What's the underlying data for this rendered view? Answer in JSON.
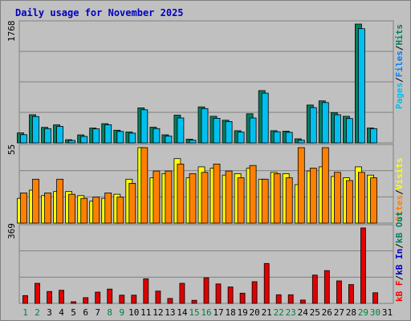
{
  "title": "Daily usage for November 2025",
  "colors": {
    "background": "#ffffff",
    "frame": "#c0c0c0",
    "plot_bg": "#c0c0c0",
    "border_dark": "#808080",
    "title": "#0000c0",
    "grid": "#808080",
    "weekday_label": "#000000",
    "weekend_label": "#008040",
    "pages": "#00c0f0",
    "files": "#0080ff",
    "hits": "#008060",
    "visits": "#ffff00",
    "sites": "#ff8000",
    "kb_out": "#ff8000",
    "kb_in": "#0000c0",
    "kb_f": "#ff0000",
    "bar_red": "#e00000"
  },
  "side_labels": {
    "top": [
      {
        "text": "Pages",
        "color": "#00c0f0"
      },
      {
        "text": "/",
        "color": "#000000"
      },
      {
        "text": "Files",
        "color": "#0080ff"
      },
      {
        "text": "/",
        "color": "#000000"
      },
      {
        "text": "Hits",
        "color": "#008060"
      }
    ],
    "middle": [
      {
        "text": "Sites",
        "color": "#ff8000"
      },
      {
        "text": "/",
        "color": "#000000"
      },
      {
        "text": "Visits",
        "color": "#ffff00"
      }
    ],
    "bottom": [
      {
        "text": "kB F",
        "color": "#ff0000"
      },
      {
        "text": "/",
        "color": "#000000"
      },
      {
        "text": "kB In",
        "color": "#0000c0"
      },
      {
        "text": "/",
        "color": "#000000"
      },
      {
        "text": "kB Out",
        "color": "#008060"
      }
    ]
  },
  "chart_data": [
    {
      "type": "bar",
      "panel": "top",
      "ymax_label": "1768",
      "ylim": [
        0,
        1768
      ],
      "categories": [
        "1",
        "2",
        "3",
        "4",
        "5",
        "6",
        "7",
        "8",
        "9",
        "10",
        "11",
        "12",
        "13",
        "14",
        "15",
        "16",
        "17",
        "18",
        "19",
        "20",
        "21",
        "22",
        "23",
        "24",
        "25",
        "26",
        "27",
        "28",
        "29",
        "30",
        "31"
      ],
      "weekend_days": [
        "1",
        "2",
        "8",
        "9",
        "15",
        "16",
        "22",
        "23",
        "29",
        "30"
      ],
      "series": [
        {
          "name": "Hits",
          "color": "#008060",
          "values": [
            148,
            418,
            230,
            268,
            46,
            118,
            220,
            285,
            187,
            162,
            521,
            233,
            120,
            412,
            55,
            535,
            395,
            337,
            180,
            432,
            778,
            180,
            175,
            60,
            563,
            625,
            450,
            395,
            1768,
            222,
            0
          ]
        },
        {
          "name": "Pages",
          "color": "#00c0f0",
          "values": [
            122,
            392,
            212,
            245,
            36,
            95,
            208,
            270,
            170,
            145,
            492,
            212,
            100,
            370,
            40,
            510,
            365,
            318,
            160,
            370,
            740,
            165,
            157,
            40,
            525,
            600,
            418,
            362,
            1700,
            212,
            0
          ]
        }
      ]
    },
    {
      "type": "bar",
      "panel": "middle",
      "ymax_label": "55",
      "ylim": [
        0,
        55
      ],
      "categories": [
        "1",
        "2",
        "3",
        "4",
        "5",
        "6",
        "7",
        "8",
        "9",
        "10",
        "11",
        "12",
        "13",
        "14",
        "15",
        "16",
        "17",
        "18",
        "19",
        "20",
        "21",
        "22",
        "23",
        "24",
        "25",
        "26",
        "27",
        "28",
        "29",
        "30",
        "31"
      ],
      "weekend_days": [
        "1",
        "2",
        "8",
        "9",
        "15",
        "16",
        "22",
        "23",
        "29",
        "30"
      ],
      "series": [
        {
          "name": "Visits",
          "color": "#ffff00",
          "values": [
            18,
            24,
            20,
            23,
            23,
            20,
            16,
            18,
            21,
            32,
            55,
            33,
            36,
            47,
            33,
            41,
            40,
            35,
            36,
            40,
            32,
            37,
            36,
            28,
            38,
            41,
            34,
            33,
            41,
            35,
            0
          ]
        },
        {
          "name": "Sites",
          "color": "#ff8000",
          "values": [
            22,
            32,
            22,
            32,
            21,
            18,
            19,
            22,
            19,
            29,
            55,
            38,
            38,
            43,
            36,
            37,
            43,
            38,
            33,
            42,
            32,
            36,
            33,
            55,
            40,
            55,
            37,
            31,
            37,
            33,
            0
          ]
        }
      ]
    },
    {
      "type": "bar",
      "panel": "bottom",
      "ymax_label": "369",
      "ylim": [
        0,
        369
      ],
      "categories": [
        "1",
        "2",
        "3",
        "4",
        "5",
        "6",
        "7",
        "8",
        "9",
        "10",
        "11",
        "12",
        "13",
        "14",
        "15",
        "16",
        "17",
        "18",
        "19",
        "20",
        "21",
        "22",
        "23",
        "24",
        "25",
        "26",
        "27",
        "28",
        "29",
        "30",
        "31"
      ],
      "weekend_days": [
        "1",
        "2",
        "8",
        "9",
        "15",
        "16",
        "22",
        "23",
        "29",
        "30"
      ],
      "series": [
        {
          "name": "kB F",
          "color": "#e00000",
          "values": [
            38,
            98,
            58,
            64,
            8,
            28,
            55,
            70,
            40,
            40,
            120,
            60,
            24,
            98,
            15,
            125,
            95,
            80,
            50,
            106,
            195,
            42,
            42,
            16,
            138,
            160,
            110,
            92,
            369,
            52,
            0
          ]
        }
      ]
    }
  ]
}
